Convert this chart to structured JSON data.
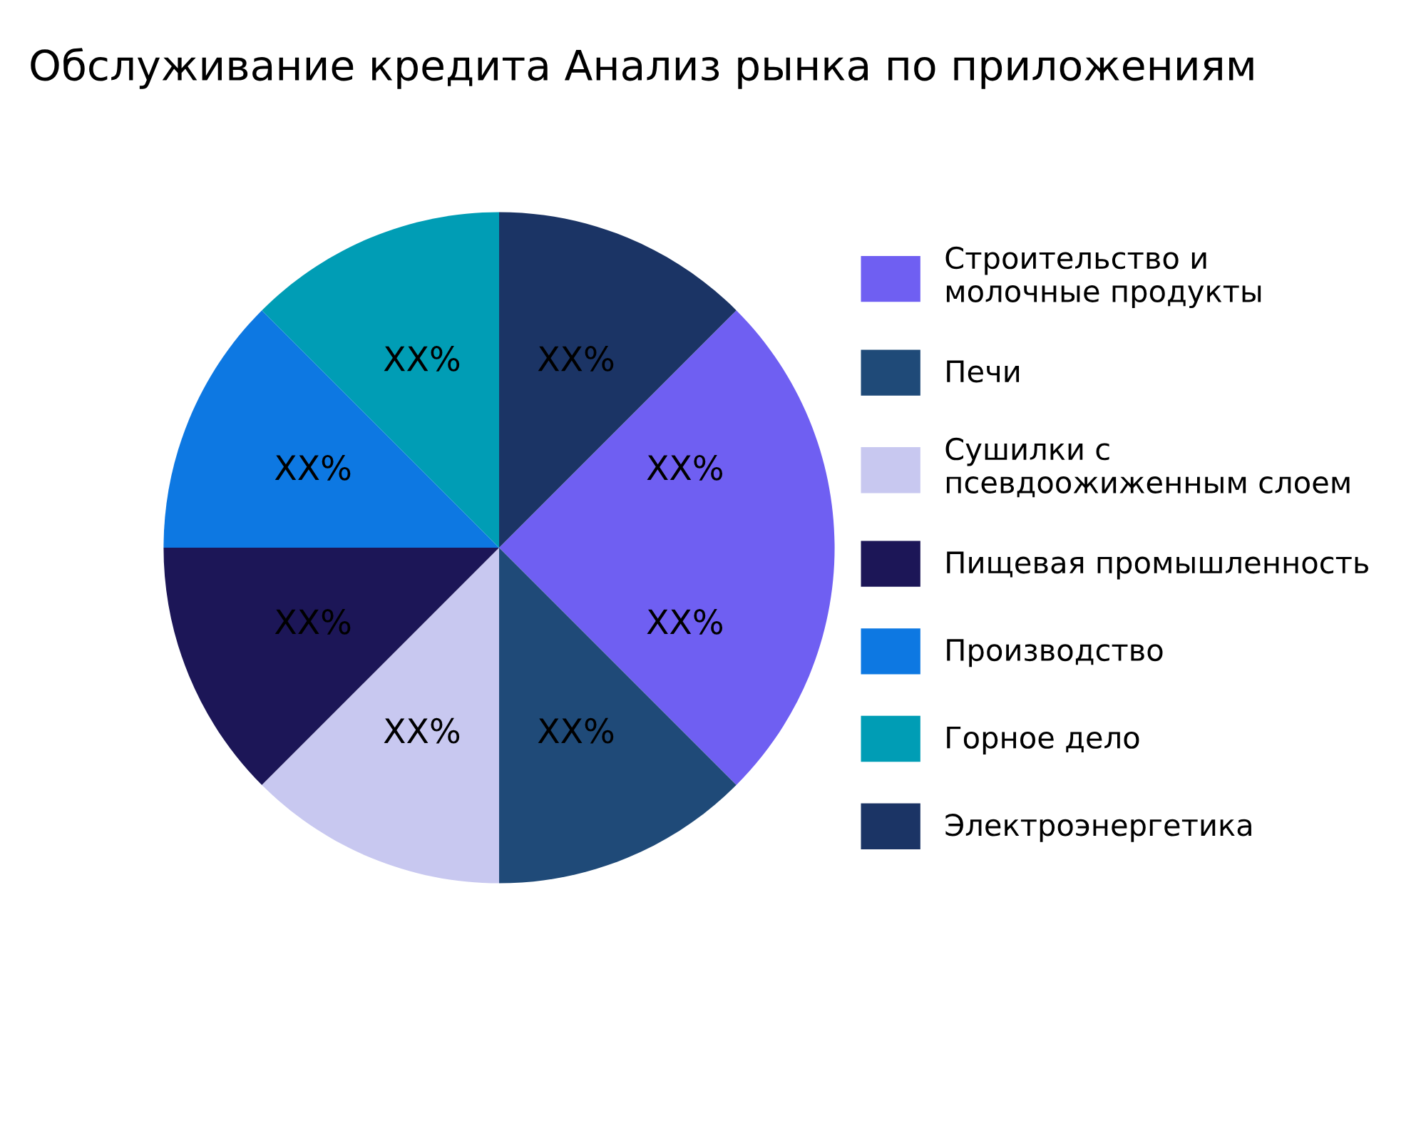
{
  "chart_data": {
    "type": "pie",
    "title": "Обслуживание кредита Анализ рынка по приложениям",
    "categories": [
      "Строительство и\nмолочные продукты",
      null,
      "Печи",
      "Сушилки с\nпсевдоожиженным слоем",
      "Пищевая промышленность",
      "Производство",
      "Горное дело",
      "Электроэнергетика"
    ],
    "values": [
      12.5,
      12.5,
      12.5,
      12.5,
      12.5,
      12.5,
      12.5,
      12.5
    ],
    "colors": [
      "#6f5ff2",
      "#6f5ff2",
      "#1f4a78",
      "#c8c8f0",
      "#1c1657",
      "#0d78e2",
      "#009db5",
      "#1b3465"
    ],
    "value_labels": [
      "XX%",
      "XX%",
      "XX%",
      "XX%",
      "XX%",
      "XX%",
      "XX%",
      "XX%"
    ],
    "legend": "right"
  }
}
